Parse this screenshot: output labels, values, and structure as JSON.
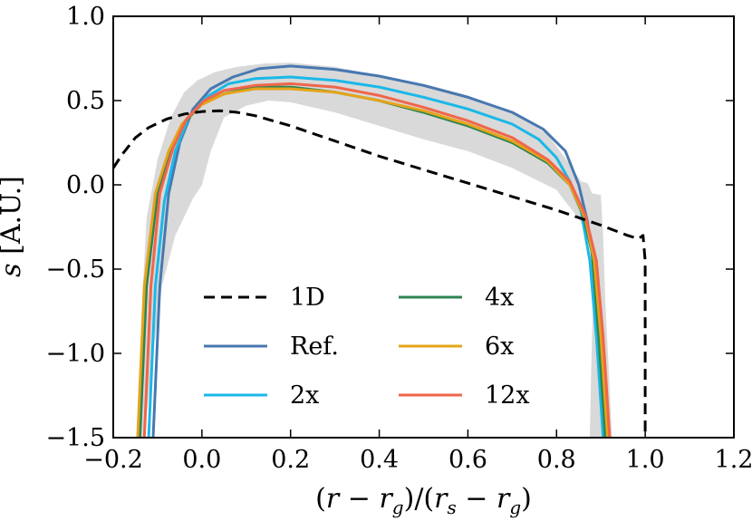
{
  "chart_data": {
    "type": "line",
    "title": "",
    "xlabel": "(r − r_g) / (r_s − r_g)",
    "xlabel_parts": [
      "(",
      "r",
      " − ",
      "r",
      "g",
      ")",
      "/",
      "(",
      "r",
      "s",
      " − ",
      "r",
      "g",
      ")"
    ],
    "ylabel": "s [A.U.]",
    "ylabel_parts": [
      "s",
      " [A.U.]"
    ],
    "xlim": [
      -0.2,
      1.2
    ],
    "ylim": [
      -1.5,
      1.0
    ],
    "xticks": [
      -0.2,
      0.0,
      0.2,
      0.4,
      0.6,
      0.8,
      1.0,
      1.2
    ],
    "xtick_labels": [
      "−0.2",
      "0.0",
      "0.2",
      "0.4",
      "0.6",
      "0.8",
      "1.0",
      "1.2"
    ],
    "yticks": [
      -1.5,
      -1.0,
      -0.5,
      0.0,
      0.5,
      1.0
    ],
    "ytick_labels": [
      "−1.5",
      "−1.0",
      "−0.5",
      "0.0",
      "0.5",
      "1.0"
    ],
    "grid": false,
    "legend_position": "lower-center",
    "band": {
      "name": "spread",
      "color": "#d9d9d9",
      "upper": [
        [
          -0.145,
          -1.5
        ],
        [
          -0.135,
          -0.7
        ],
        [
          -0.125,
          -0.2
        ],
        [
          -0.1,
          0.15
        ],
        [
          -0.07,
          0.4
        ],
        [
          -0.04,
          0.55
        ],
        [
          -0.01,
          0.62
        ],
        [
          0.03,
          0.67
        ],
        [
          0.08,
          0.7
        ],
        [
          0.14,
          0.72
        ],
        [
          0.2,
          0.725
        ],
        [
          0.3,
          0.7
        ],
        [
          0.4,
          0.65
        ],
        [
          0.5,
          0.6
        ],
        [
          0.6,
          0.53
        ],
        [
          0.7,
          0.43
        ],
        [
          0.78,
          0.3
        ],
        [
          0.83,
          0.12
        ],
        [
          0.855,
          0.02
        ],
        [
          0.87,
          0.01
        ],
        [
          0.88,
          -0.05
        ],
        [
          0.9,
          -0.06
        ],
        [
          0.905,
          -0.3
        ],
        [
          0.91,
          -0.7
        ],
        [
          0.918,
          -1.1
        ],
        [
          0.925,
          -1.5
        ]
      ],
      "lower": [
        [
          0.875,
          -1.5
        ],
        [
          0.878,
          -1.1
        ],
        [
          0.882,
          -0.7
        ],
        [
          0.885,
          -0.4
        ],
        [
          0.872,
          -0.3
        ],
        [
          0.85,
          -0.2
        ],
        [
          0.82,
          -0.1
        ],
        [
          0.8,
          -0.03
        ],
        [
          0.7,
          0.1
        ],
        [
          0.6,
          0.2
        ],
        [
          0.5,
          0.27
        ],
        [
          0.4,
          0.35
        ],
        [
          0.3,
          0.43
        ],
        [
          0.2,
          0.49
        ],
        [
          0.15,
          0.5
        ],
        [
          0.1,
          0.47
        ],
        [
          0.05,
          0.4
        ],
        [
          0.02,
          0.2
        ],
        [
          0.0,
          0.0
        ],
        [
          -0.02,
          -0.08
        ],
        [
          -0.06,
          -0.3
        ],
        [
          -0.09,
          -0.6
        ],
        [
          -0.11,
          -1.0
        ],
        [
          -0.13,
          -1.5
        ]
      ]
    },
    "series": [
      {
        "name": "1D",
        "color": "#000000",
        "dashed": true,
        "points": [
          [
            -0.2,
            0.1
          ],
          [
            -0.18,
            0.18
          ],
          [
            -0.15,
            0.28
          ],
          [
            -0.12,
            0.34
          ],
          [
            -0.08,
            0.39
          ],
          [
            -0.04,
            0.42
          ],
          [
            0.0,
            0.435
          ],
          [
            0.04,
            0.44
          ],
          [
            0.08,
            0.43
          ],
          [
            0.12,
            0.41
          ],
          [
            0.2,
            0.35
          ],
          [
            0.3,
            0.26
          ],
          [
            0.4,
            0.17
          ],
          [
            0.5,
            0.09
          ],
          [
            0.6,
            0.01
          ],
          [
            0.7,
            -0.07
          ],
          [
            0.8,
            -0.15
          ],
          [
            0.9,
            -0.24
          ],
          [
            0.96,
            -0.3
          ],
          [
            0.985,
            -0.32
          ],
          [
            0.995,
            -0.3
          ],
          [
            1.0,
            -0.45
          ],
          [
            1.0,
            -1.5
          ]
        ]
      },
      {
        "name": "Ref.",
        "color": "#4878b0",
        "dashed": false,
        "points": [
          [
            -0.11,
            -1.5
          ],
          [
            -0.095,
            -0.6
          ],
          [
            -0.075,
            -0.05
          ],
          [
            -0.05,
            0.25
          ],
          [
            -0.02,
            0.45
          ],
          [
            0.02,
            0.57
          ],
          [
            0.07,
            0.64
          ],
          [
            0.13,
            0.69
          ],
          [
            0.2,
            0.705
          ],
          [
            0.3,
            0.685
          ],
          [
            0.4,
            0.645
          ],
          [
            0.5,
            0.59
          ],
          [
            0.6,
            0.52
          ],
          [
            0.7,
            0.43
          ],
          [
            0.77,
            0.33
          ],
          [
            0.82,
            0.2
          ],
          [
            0.85,
            0.0
          ],
          [
            0.87,
            -0.22
          ],
          [
            0.89,
            -0.6
          ],
          [
            0.9,
            -1.0
          ],
          [
            0.91,
            -1.5
          ]
        ]
      },
      {
        "name": "2x",
        "color": "#1ab8e8",
        "dashed": false,
        "points": [
          [
            -0.12,
            -1.5
          ],
          [
            -0.105,
            -0.6
          ],
          [
            -0.085,
            -0.1
          ],
          [
            -0.06,
            0.2
          ],
          [
            -0.03,
            0.4
          ],
          [
            0.01,
            0.52
          ],
          [
            0.06,
            0.6
          ],
          [
            0.12,
            0.63
          ],
          [
            0.2,
            0.64
          ],
          [
            0.3,
            0.62
          ],
          [
            0.4,
            0.58
          ],
          [
            0.5,
            0.52
          ],
          [
            0.6,
            0.45
          ],
          [
            0.7,
            0.36
          ],
          [
            0.76,
            0.27
          ],
          [
            0.8,
            0.16
          ],
          [
            0.83,
            0.02
          ],
          [
            0.855,
            -0.15
          ],
          [
            0.875,
            -0.45
          ],
          [
            0.89,
            -0.9
          ],
          [
            0.905,
            -1.5
          ]
        ]
      },
      {
        "name": "4x",
        "color": "#2e8550",
        "dashed": false,
        "points": [
          [
            -0.14,
            -1.5
          ],
          [
            -0.125,
            -0.6
          ],
          [
            -0.1,
            -0.05
          ],
          [
            -0.07,
            0.2
          ],
          [
            -0.04,
            0.37
          ],
          [
            0.0,
            0.48
          ],
          [
            0.05,
            0.54
          ],
          [
            0.12,
            0.58
          ],
          [
            0.2,
            0.58
          ],
          [
            0.3,
            0.55
          ],
          [
            0.4,
            0.5
          ],
          [
            0.5,
            0.43
          ],
          [
            0.6,
            0.35
          ],
          [
            0.7,
            0.25
          ],
          [
            0.78,
            0.13
          ],
          [
            0.83,
            0.0
          ],
          [
            0.86,
            -0.18
          ],
          [
            0.88,
            -0.4
          ],
          [
            0.895,
            -0.9
          ],
          [
            0.91,
            -1.5
          ]
        ]
      },
      {
        "name": "6x",
        "color": "#e5a41a",
        "dashed": false,
        "points": [
          [
            -0.145,
            -1.5
          ],
          [
            -0.13,
            -0.6
          ],
          [
            -0.105,
            -0.05
          ],
          [
            -0.075,
            0.2
          ],
          [
            -0.045,
            0.36
          ],
          [
            -0.005,
            0.47
          ],
          [
            0.05,
            0.54
          ],
          [
            0.12,
            0.57
          ],
          [
            0.2,
            0.57
          ],
          [
            0.3,
            0.55
          ],
          [
            0.4,
            0.5
          ],
          [
            0.5,
            0.44
          ],
          [
            0.6,
            0.36
          ],
          [
            0.7,
            0.26
          ],
          [
            0.78,
            0.14
          ],
          [
            0.83,
            0.0
          ],
          [
            0.865,
            -0.2
          ],
          [
            0.885,
            -0.45
          ],
          [
            0.9,
            -0.9
          ],
          [
            0.915,
            -1.5
          ]
        ]
      },
      {
        "name": "12x",
        "color": "#f0664a",
        "dashed": false,
        "points": [
          [
            -0.13,
            -1.5
          ],
          [
            -0.115,
            -0.6
          ],
          [
            -0.095,
            -0.05
          ],
          [
            -0.065,
            0.22
          ],
          [
            -0.035,
            0.39
          ],
          [
            0.005,
            0.5
          ],
          [
            0.05,
            0.56
          ],
          [
            0.12,
            0.59
          ],
          [
            0.2,
            0.6
          ],
          [
            0.3,
            0.58
          ],
          [
            0.4,
            0.53
          ],
          [
            0.5,
            0.46
          ],
          [
            0.6,
            0.38
          ],
          [
            0.7,
            0.28
          ],
          [
            0.78,
            0.15
          ],
          [
            0.83,
            0.02
          ],
          [
            0.865,
            -0.18
          ],
          [
            0.89,
            -0.45
          ],
          [
            0.905,
            -0.9
          ],
          [
            0.92,
            -1.5
          ]
        ]
      }
    ]
  }
}
